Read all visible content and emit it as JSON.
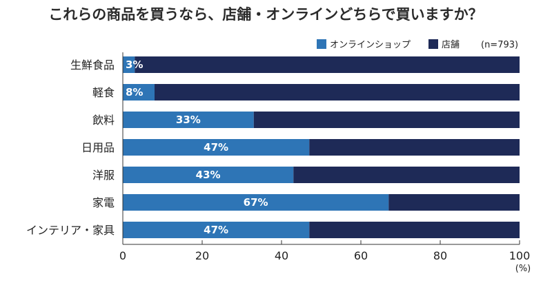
{
  "chart_data": {
    "type": "bar",
    "orientation": "horizontal",
    "stacked": true,
    "title": "これらの商品を買うなら、店舗・オンラインどちらで買いますか？",
    "sample_size": "(n=793)",
    "categories": [
      "生鮮食品",
      "軽食",
      "飲料",
      "日用品",
      "洋服",
      "家電",
      "インテリア・家具"
    ],
    "series": [
      {
        "name": "オンラインショップ",
        "color": "#2e75b6",
        "values": [
          3,
          8,
          33,
          47,
          43,
          67,
          47
        ]
      },
      {
        "name": "店舗",
        "color": "#1e2a57",
        "values": [
          97,
          92,
          67,
          53,
          57,
          33,
          53
        ]
      }
    ],
    "data_labels": [
      "3%",
      "8%",
      "33%",
      "47%",
      "43%",
      "67%",
      "47%"
    ],
    "xlim": [
      0,
      100
    ],
    "xticks": [
      "0",
      "20",
      "40",
      "60",
      "80",
      "100"
    ],
    "x_unit": "(%)",
    "legend_position": "top-right",
    "grid": false
  }
}
